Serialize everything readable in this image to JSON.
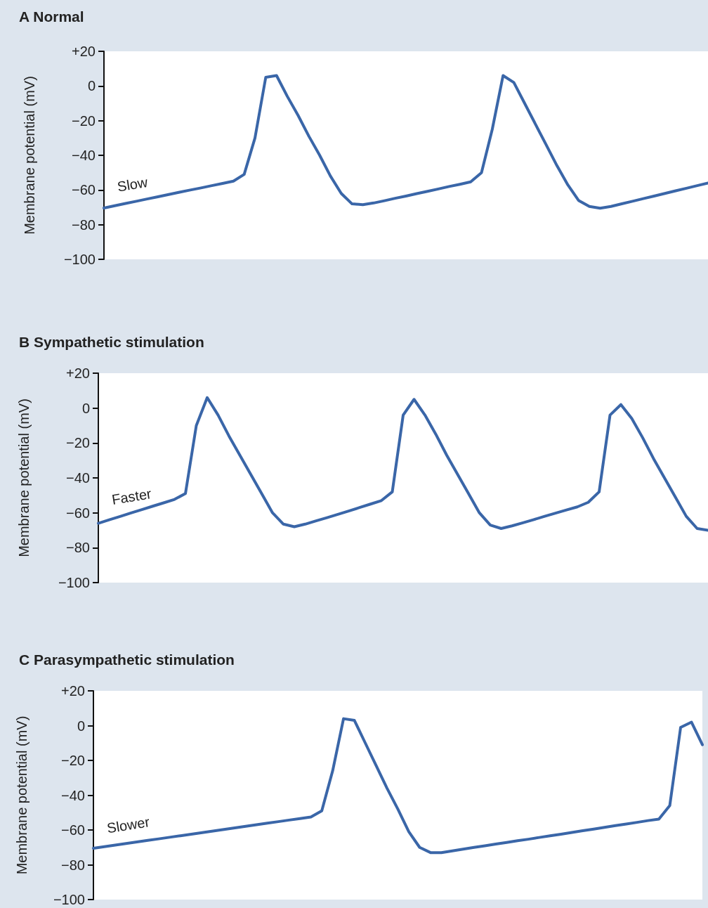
{
  "chart_data": [
    {
      "type": "line",
      "title": "A Normal",
      "ylabel": "Membrane potential (mV)",
      "color": "#3a66a8",
      "marker": "none",
      "line_style": "solid",
      "tick_labels": "y",
      "annotations": [
        "Slow"
      ],
      "categories": [
        null,
        null,
        null,
        null,
        null,
        null,
        null,
        null,
        null,
        null,
        null,
        null,
        null,
        null,
        null,
        null,
        null,
        null,
        null,
        null,
        null,
        null,
        null,
        null,
        null,
        null,
        null,
        null,
        null,
        null,
        null,
        null,
        null,
        null,
        null,
        null,
        null,
        null,
        null,
        null,
        null,
        null,
        null,
        null,
        null,
        null,
        null,
        null,
        null,
        null,
        null,
        null,
        null,
        null,
        null,
        null,
        null
      ],
      "values": [
        -70.4,
        -69.1,
        -67.8,
        -66.5,
        -65.2,
        -63.9,
        -62.6,
        -61.3,
        -60,
        -58.8,
        -57.5,
        -56.2,
        -54.9,
        -51,
        -30,
        5,
        6,
        -6,
        -17,
        -29,
        -40,
        -52,
        -62,
        -68,
        -68.5,
        -67.5,
        -66.2,
        -64.8,
        -63.5,
        -62.1,
        -60.8,
        -59.4,
        -58,
        -56.7,
        -55.3,
        -50,
        -25,
        6,
        2,
        -10,
        -22,
        -34,
        -46,
        -57,
        -66,
        -69.5,
        -70.5,
        -69.5,
        -68,
        -66.5,
        -65,
        -63.5,
        -62,
        -60.5,
        -59,
        -57.5,
        -56
      ],
      "ylim": [
        -100,
        20
      ],
      "yticks": [
        {
          "value": 20,
          "label": "+20"
        },
        {
          "value": 0,
          "label": "0"
        },
        {
          "value": -20,
          "label": "−20"
        },
        {
          "value": -40,
          "label": "−40"
        },
        {
          "value": -60,
          "label": "−60"
        },
        {
          "value": -80,
          "label": "−80"
        },
        {
          "value": -100,
          "label": "−100"
        }
      ]
    },
    {
      "type": "line",
      "title": "B Sympathetic stimulation",
      "ylabel": "Membrane potential (mV)",
      "color": "#3a66a8",
      "marker": "none",
      "line_style": "solid",
      "tick_labels": "y",
      "annotations": [
        "Faster"
      ],
      "categories": [
        null,
        null,
        null,
        null,
        null,
        null,
        null,
        null,
        null,
        null,
        null,
        null,
        null,
        null,
        null,
        null,
        null,
        null,
        null,
        null,
        null,
        null,
        null,
        null,
        null,
        null,
        null,
        null,
        null,
        null,
        null,
        null,
        null,
        null,
        null,
        null,
        null,
        null,
        null,
        null,
        null,
        null,
        null,
        null,
        null,
        null,
        null,
        null,
        null,
        null,
        null,
        null,
        null,
        null,
        null,
        null,
        null
      ],
      "values": [
        -66,
        -64,
        -62.1,
        -60.1,
        -58.2,
        -56.2,
        -54.3,
        -52.3,
        -49,
        -10,
        6,
        -4,
        -16,
        -27,
        -38,
        -49,
        -60,
        -66.5,
        -68,
        -66.5,
        -64.6,
        -62.8,
        -60.9,
        -59,
        -57,
        -55,
        -53,
        -48,
        -4,
        5,
        -4,
        -15,
        -27,
        -38,
        -49,
        -60,
        -67,
        -69,
        -67.5,
        -65.7,
        -63.9,
        -62,
        -60.2,
        -58.4,
        -56.6,
        -54,
        -48,
        -4,
        2,
        -6,
        -17,
        -29,
        -40,
        -51,
        -62,
        -69,
        -70
      ],
      "ylim": [
        -100,
        20
      ],
      "yticks": [
        {
          "value": 20,
          "label": "+20"
        },
        {
          "value": 0,
          "label": "0"
        },
        {
          "value": -20,
          "label": "−20"
        },
        {
          "value": -40,
          "label": "−40"
        },
        {
          "value": -60,
          "label": "−60"
        },
        {
          "value": -80,
          "label": "−80"
        },
        {
          "value": -100,
          "label": "−100"
        }
      ]
    },
    {
      "type": "line",
      "title": "C Parasympathetic stimulation",
      "ylabel": "Membrane potential (mV)",
      "color": "#3a66a8",
      "marker": "none",
      "line_style": "solid",
      "tick_labels": "y",
      "annotations": [
        "Slower"
      ],
      "categories": [
        null,
        null,
        null,
        null,
        null,
        null,
        null,
        null,
        null,
        null,
        null,
        null,
        null,
        null,
        null,
        null,
        null,
        null,
        null,
        null,
        null,
        null,
        null,
        null,
        null,
        null,
        null,
        null,
        null,
        null,
        null,
        null,
        null,
        null,
        null,
        null,
        null,
        null,
        null,
        null,
        null,
        null,
        null,
        null,
        null,
        null,
        null,
        null,
        null,
        null,
        null,
        null,
        null,
        null,
        null,
        null,
        null
      ],
      "values": [
        -70.5,
        -69.6,
        -68.7,
        -67.8,
        -66.9,
        -66,
        -65.1,
        -64.2,
        -63.3,
        -62.4,
        -61.5,
        -60.6,
        -59.7,
        -58.8,
        -57.9,
        -57,
        -56.1,
        -55.2,
        -54.3,
        -53.4,
        -52.5,
        -49,
        -26,
        4,
        3,
        -10,
        -23,
        -36,
        -48,
        -61,
        -70,
        -73,
        -73,
        -72,
        -71,
        -70,
        -69.1,
        -68.1,
        -67.2,
        -66.2,
        -65.3,
        -64.3,
        -63.3,
        -62.4,
        -61.4,
        -60.4,
        -59.5,
        -58.5,
        -57.5,
        -56.6,
        -55.6,
        -54.6,
        -53.7,
        -46,
        -1,
        2,
        -11
      ],
      "ylim": [
        -100,
        20
      ],
      "yticks": [
        {
          "value": 20,
          "label": "+20"
        },
        {
          "value": 0,
          "label": "0"
        },
        {
          "value": -20,
          "label": "−20"
        },
        {
          "value": -40,
          "label": "−40"
        },
        {
          "value": -60,
          "label": "−60"
        },
        {
          "value": -80,
          "label": "−80"
        },
        {
          "value": -100,
          "label": "−100"
        }
      ]
    }
  ]
}
